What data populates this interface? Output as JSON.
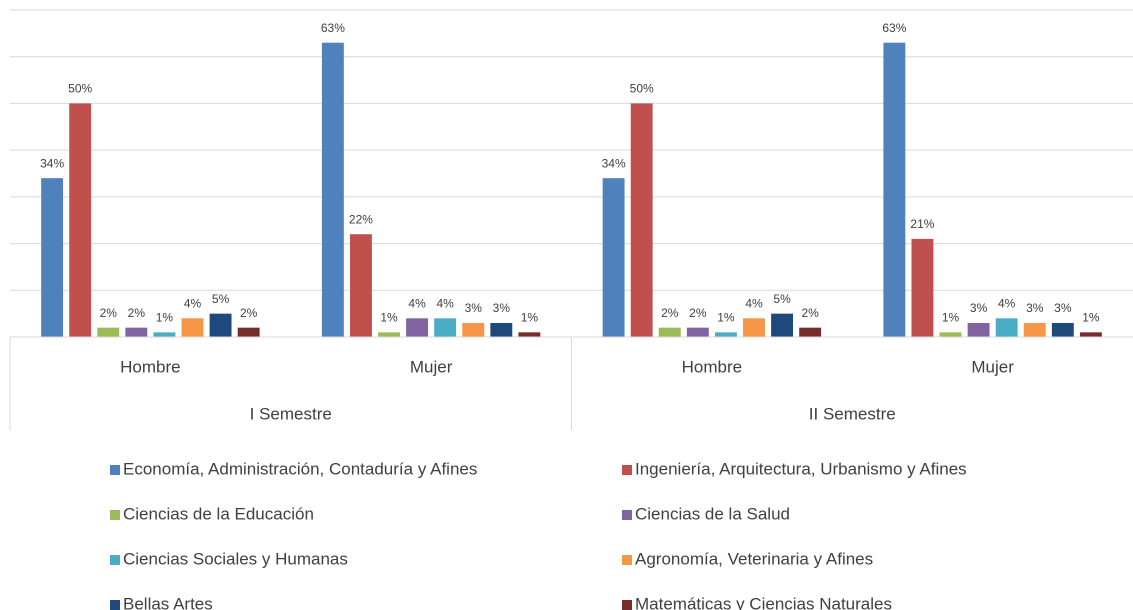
{
  "chart_data": {
    "type": "bar",
    "groups": [
      {
        "label": "I Semestre",
        "categories": [
          "Hombre",
          "Mujer"
        ]
      },
      {
        "label": "II Semestre",
        "categories": [
          "Hombre",
          "Mujer"
        ]
      }
    ],
    "ylim": [
      0,
      70
    ],
    "yticks": [
      0,
      10,
      20,
      30,
      40,
      50,
      60,
      70
    ],
    "grid": true,
    "legend": "bottom",
    "series": [
      {
        "name": "Economía, Administración, Contaduría y Afines",
        "color": "#4f81bd",
        "values": [
          34,
          63,
          34,
          63
        ],
        "value_labels": [
          "34%",
          "63%",
          "34%",
          "63%"
        ]
      },
      {
        "name": "Ingeniería, Arquitectura, Urbanismo y Afines",
        "color": "#c0504d",
        "values": [
          50,
          22,
          50,
          21
        ],
        "value_labels": [
          "50%",
          "22%",
          "50%",
          "21%"
        ]
      },
      {
        "name": "Ciencias de la Educación",
        "color": "#9bbb59",
        "values": [
          2,
          1,
          2,
          1
        ],
        "value_labels": [
          "2%",
          "1%",
          "2%",
          "1%"
        ]
      },
      {
        "name": "Ciencias de la Salud",
        "color": "#8064a2",
        "values": [
          2,
          4,
          2,
          3
        ],
        "value_labels": [
          "2%",
          "4%",
          "2%",
          "3%"
        ]
      },
      {
        "name": "Ciencias Sociales y Humanas",
        "color": "#4bacc6",
        "values": [
          1,
          4,
          1,
          4
        ],
        "value_labels": [
          "1%",
          "4%",
          "1%",
          "4%"
        ]
      },
      {
        "name": "Agronomía, Veterinaria y Afines",
        "color": "#f79646",
        "values": [
          4,
          3,
          4,
          3
        ],
        "value_labels": [
          "4%",
          "3%",
          "4%",
          "3%"
        ]
      },
      {
        "name": "Bellas Artes",
        "color": "#1f497d",
        "values": [
          5,
          3,
          5,
          3
        ],
        "value_labels": [
          "5%",
          "3%",
          "5%",
          "3%"
        ]
      },
      {
        "name": "Matemáticas y Ciencias Naturales",
        "color": "#772c2a",
        "values": [
          2,
          1,
          2,
          1
        ],
        "value_labels": [
          "2%",
          "1%",
          "2%",
          "1%"
        ]
      }
    ]
  }
}
